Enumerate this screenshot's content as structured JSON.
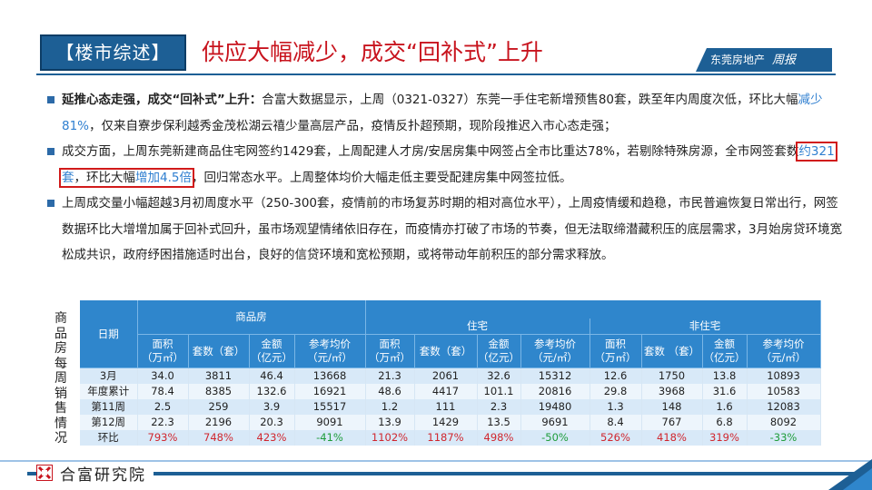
{
  "header": {
    "tag": "【楼市综述】",
    "headline": "供应大幅减少，成交“回补式”上升",
    "brand_text": "东莞房地产",
    "brand_script": "周报"
  },
  "bullets": [
    {
      "lead": "延推心态走强，成交“回补式”上升：",
      "t1": "合富大数据显示，上周（0321-0327）东莞一手住宅新增预售80套，跌至年内周度次低，环比大幅",
      "h1": "减少81%",
      "t2": "，仅来自寮步保利越秀金茂松湖云禧少量高层产品，疫情反扑超预期，现阶段推迟入市心态走强；"
    },
    {
      "t1": "成交方面，上周东莞新建商品住宅网签约1429套，上周配建人才房/安居房集中网签占全市比重达78%，若剔除特殊房源，全市网签套数",
      "h1": "约321套",
      "t2": "，环比大幅",
      "h2": "增加4.5倍",
      "t3": "，回归常态水平。上周整体均价大幅走低主要受配建房集中网签拉低。"
    },
    {
      "t1": "上周成交量小幅超越3月初周度水平（250-300套，疫情前的市场复苏时期的相对高位水平），上周疫情缓和趋稳，市民普遍恢复日常出行，网签数据环比大增增加属于回补式回升，虽市场观望情绪依旧存在，而疫情亦打破了市场的节奏，但无法取缔潜藏积压的底层需求，3月始房贷环境宽松成共识，政府纾困措施适时出台，良好的信贷环境和宽松预期，或将带动年前积压的部分需求释放。"
    }
  ],
  "table": {
    "side_label": [
      "商",
      "品",
      "房",
      "每",
      "周",
      "销",
      "售",
      "情",
      "况"
    ],
    "date_header": "日期",
    "groups": [
      "商品房",
      "住宅",
      "非住宅"
    ],
    "sub_headers": [
      [
        "面积",
        "（万㎡）"
      ],
      [
        "套数（套）"
      ],
      [
        "金额",
        "（亿元）"
      ],
      [
        "参考均价",
        "（元/㎡）"
      ],
      [
        "面积",
        "（万㎡）"
      ],
      [
        "套数（套）"
      ],
      [
        "金额",
        "（亿元）"
      ],
      [
        "参考均价",
        "（元/㎡）"
      ],
      [
        "面积",
        "（万㎡）"
      ],
      [
        "套数 （套）"
      ],
      [
        "金额",
        "（亿元）"
      ],
      [
        "参考均价",
        "（元/㎡）"
      ]
    ],
    "rows": [
      [
        "3月",
        "34.0",
        "3811",
        "46.4",
        "13668",
        "21.3",
        "2061",
        "32.6",
        "15312",
        "12.6",
        "1750",
        "13.8",
        "10893"
      ],
      [
        "年度累计",
        "78.4",
        "8385",
        "132.6",
        "16921",
        "48.6",
        "4417",
        "101.1",
        "20816",
        "29.8",
        "3968",
        "31.6",
        "10583"
      ],
      [
        "第11周",
        "2.5",
        "259",
        "3.9",
        "15517",
        "1.2",
        "111",
        "2.3",
        "19480",
        "1.3",
        "148",
        "1.6",
        "12083"
      ],
      [
        "第12周",
        "22.3",
        "2196",
        "20.3",
        "9091",
        "13.9",
        "1429",
        "13.5",
        "9691",
        "8.4",
        "767",
        "6.8",
        "8092"
      ],
      [
        "环比",
        "793%",
        "748%",
        "423%",
        "-41%",
        "1102%",
        "1187%",
        "498%",
        "-50%",
        "526%",
        "418%",
        "319%",
        "-33%"
      ]
    ]
  },
  "footer": {
    "logo_text": "合富研究院"
  },
  "colors": {
    "primary": "#1d5f95",
    "headline_red": "#c8141e",
    "highlight_blue": "#2f7fd0",
    "table_header": "#2f86cc",
    "increase_red": "#d0262e",
    "decrease_green": "#1e9c3a"
  }
}
